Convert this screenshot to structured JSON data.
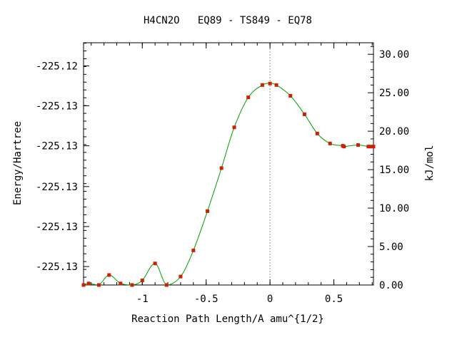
{
  "chart_data": {
    "type": "line",
    "title": "H4CN2O   EQ89 - TS849 - EQ78",
    "xlabel": "Reaction Path Length/A amu^{1/2}",
    "ylabel_left": "Energy/Hartree",
    "ylabel_right": "kJ/mol",
    "xlim": [
      -1.46,
      0.81
    ],
    "ylim_right": [
      0,
      31.5
    ],
    "x_ticks": [
      -1,
      -0.5,
      0,
      0.5
    ],
    "x_tick_labels": [
      "-1",
      "-0.5",
      "0",
      "0.5"
    ],
    "left_tick_values_kj": [
      2.4,
      7.6,
      12.8,
      18.1,
      23.3,
      28.5
    ],
    "left_tick_labels": [
      "-225.13",
      "-225.13",
      "-225.13",
      "-225.13",
      "-225.13",
      "-225.12"
    ],
    "right_ticks": [
      0,
      5,
      10,
      15,
      20,
      25,
      30
    ],
    "right_tick_labels": [
      "0.00",
      "5.00",
      "10.00",
      "15.00",
      "20.00",
      "25.00",
      "30.00"
    ],
    "ts_x": 0,
    "curve_color": "#00a000",
    "point_color": "#cc2200",
    "ts_line_color": "#999999",
    "series": [
      {
        "x": [
          -1.46,
          -1.42,
          -1.34,
          -1.26,
          -1.17,
          -1.08,
          -1.0,
          -0.9,
          -0.81,
          -0.7,
          -0.6,
          -0.49,
          -0.38,
          -0.28,
          -0.17,
          -0.06,
          0.0,
          0.05,
          0.16,
          0.27,
          0.37,
          0.47,
          0.57,
          0.58,
          0.69,
          0.77,
          0.79,
          0.81
        ],
        "y": [
          0.0,
          0.2,
          0.0,
          1.3,
          0.2,
          0.0,
          0.6,
          2.8,
          0.0,
          1.1,
          4.5,
          9.6,
          15.2,
          20.5,
          24.4,
          26.0,
          26.2,
          26.0,
          24.6,
          22.2,
          19.7,
          18.4,
          18.1,
          18.0,
          18.2,
          18.0,
          18.0,
          18.0
        ]
      }
    ]
  }
}
